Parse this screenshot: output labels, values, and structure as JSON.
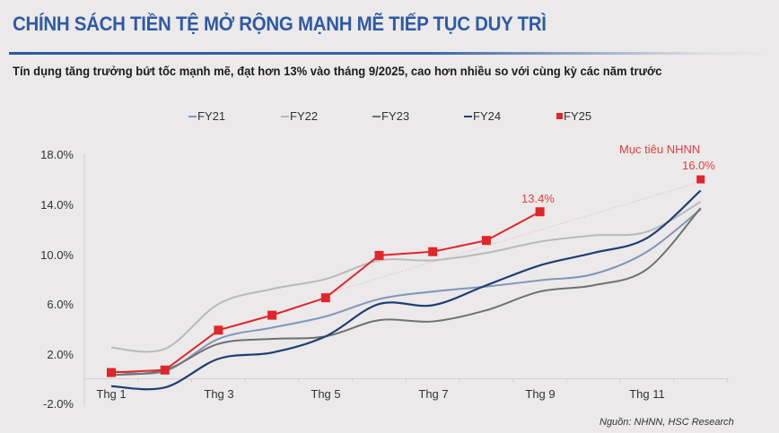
{
  "header": {
    "title": "CHÍNH SÁCH TIỀN TỆ MỞ RỘNG MẠNH MẼ TIẾP TỤC DUY TRÌ",
    "subtitle": "Tín dụng tăng trưởng bứt tốc mạnh mẽ, đạt hơn 13% vào tháng 9/2025, cao hơn nhiều so với cùng kỳ các năm trước"
  },
  "legend": [
    {
      "label": "FY21",
      "color": "#7f96b8",
      "marker": "line"
    },
    {
      "label": "FY22",
      "color": "#b9b9bd",
      "marker": "line"
    },
    {
      "label": "FY23",
      "color": "#707070",
      "marker": "line"
    },
    {
      "label": "FY24",
      "color": "#1f3f73",
      "marker": "line"
    },
    {
      "label": "FY25",
      "color": "#e0262b",
      "marker": "square"
    }
  ],
  "annotations": {
    "target_label": "Mục tiêu NHNN",
    "target_value": "16.0%",
    "last_fy25_value": "13.4%"
  },
  "source": "Nguồn: NHNN, HSC Research",
  "chart_data": {
    "type": "line",
    "title": "Tín dụng tăng trưởng bứt tốc mạnh mẽ, đạt hơn 13% vào tháng 9/2025, cao hơn nhiều so với cùng kỳ các năm trước",
    "xlabel": "",
    "ylabel": "",
    "x": [
      "Thg 1",
      "Thg 2",
      "Thg 3",
      "Thg 4",
      "Thg 5",
      "Thg 6",
      "Thg 7",
      "Thg 8",
      "Thg 9",
      "Thg 10",
      "Thg 11",
      "Thg 12"
    ],
    "x_tick_labels": [
      "Thg 1",
      "Thg 3",
      "Thg 5",
      "Thg 7",
      "Thg 9",
      "Thg 11"
    ],
    "y_tick_labels": [
      "18.0%",
      "14.0%",
      "10.0%",
      "6.0%",
      "2.0%",
      "-2.0%"
    ],
    "ylim": [
      -2,
      18
    ],
    "grid": false,
    "legend_position": "top",
    "series": [
      {
        "name": "FY21",
        "values": [
          0.6,
          0.6,
          3.2,
          4.1,
          5.0,
          6.4,
          7.0,
          7.4,
          7.9,
          8.4,
          10.2,
          13.6
        ]
      },
      {
        "name": "FY22",
        "values": [
          2.5,
          2.4,
          6.0,
          7.2,
          8.0,
          9.5,
          9.5,
          10.1,
          11.0,
          11.5,
          11.8,
          14.2
        ]
      },
      {
        "name": "FY23",
        "values": [
          0.3,
          0.7,
          2.8,
          3.2,
          3.4,
          4.7,
          4.6,
          5.5,
          7.0,
          7.5,
          8.8,
          13.7
        ]
      },
      {
        "name": "FY24",
        "values": [
          -0.6,
          -0.7,
          1.6,
          2.1,
          3.4,
          6.0,
          5.9,
          7.5,
          9.1,
          10.1,
          11.3,
          15.1
        ]
      },
      {
        "name": "FY25",
        "values": [
          0.5,
          0.7,
          3.9,
          5.1,
          6.5,
          9.9,
          10.2,
          11.1,
          13.4,
          null,
          null,
          null
        ]
      },
      {
        "name": "Mục tiêu NHNN",
        "values": [
          null,
          null,
          null,
          null,
          null,
          null,
          null,
          null,
          null,
          null,
          null,
          16.0
        ]
      }
    ],
    "annotations": [
      {
        "text": "13.4%",
        "x": "Thg 9",
        "series": "FY25"
      },
      {
        "text": "Mục tiêu NHNN",
        "x": "Thg 12"
      },
      {
        "text": "16.0%",
        "x": "Thg 12"
      }
    ]
  }
}
